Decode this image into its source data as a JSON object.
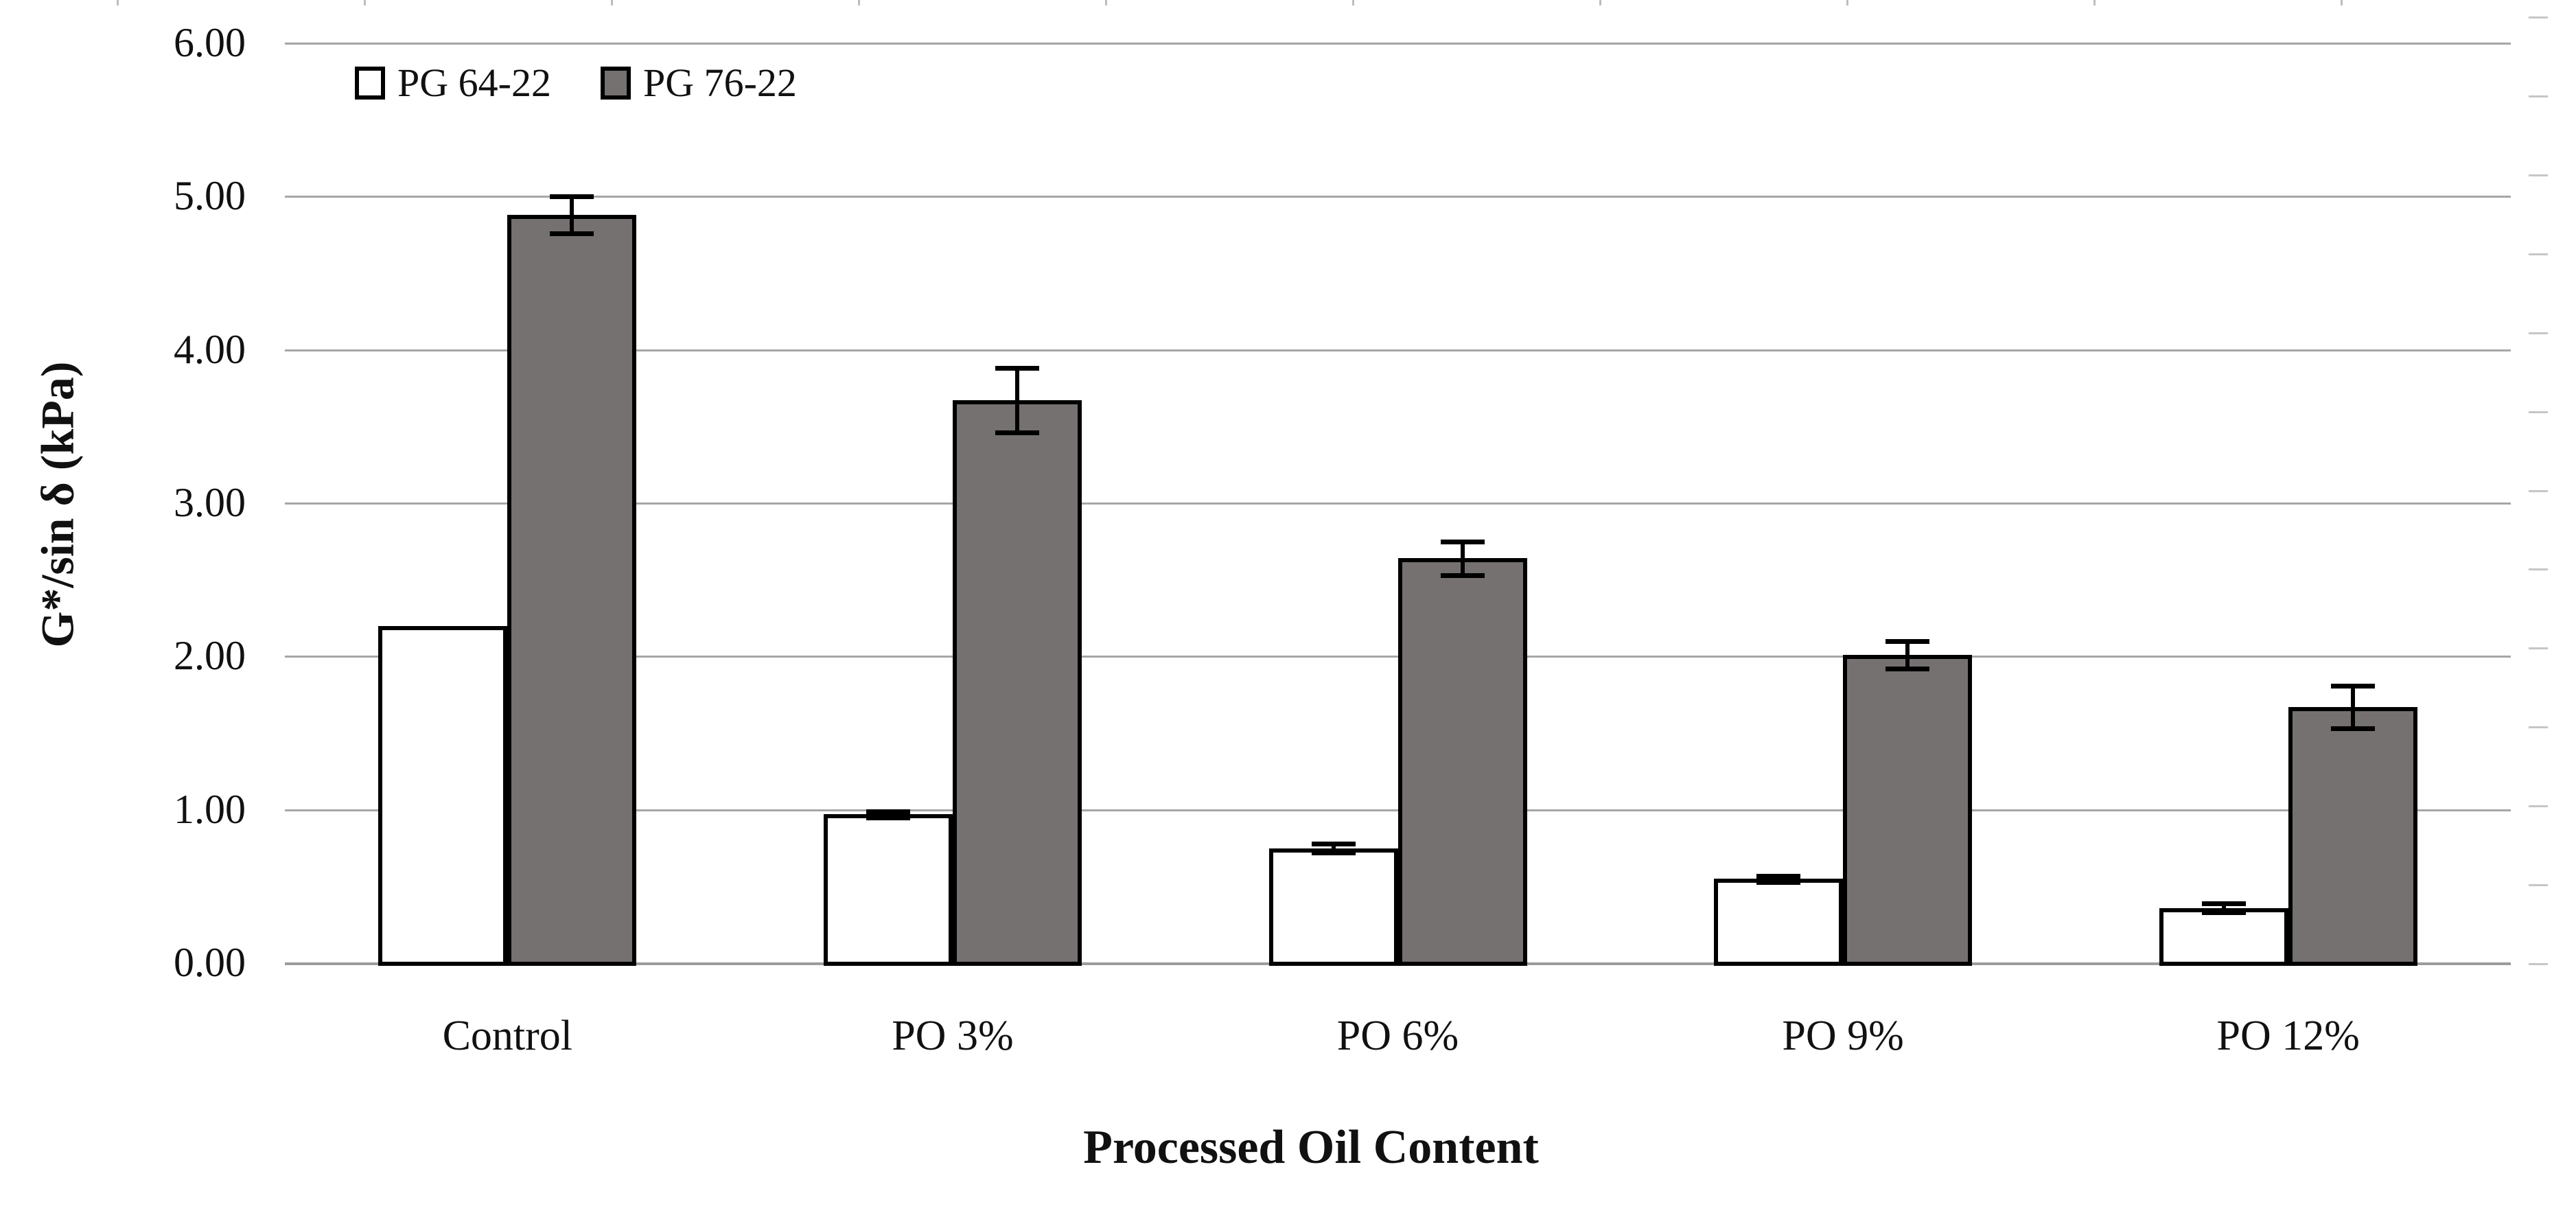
{
  "chart_data": {
    "type": "bar",
    "title": "",
    "categories": [
      "Control",
      "PO 3%",
      "PO 6%",
      "PO 9%",
      "PO 12%"
    ],
    "series": [
      {
        "name": "PG 64-22",
        "fill": "#ffffff",
        "values": [
          2.2,
          0.97,
          0.75,
          0.55,
          0.36
        ],
        "errors": [
          0,
          0.02,
          0.03,
          0.02,
          0.03
        ]
      },
      {
        "name": "PG 76-22",
        "fill": "#767171",
        "values": [
          4.88,
          3.67,
          2.64,
          2.01,
          1.67
        ],
        "errors": [
          0.12,
          0.21,
          0.11,
          0.09,
          0.14
        ]
      }
    ],
    "xlabel": "Processed Oil Content",
    "ylabel": "G*/sin δ (kPa)",
    "ylim": [
      0,
      6
    ],
    "ytick_step": 1.0,
    "ytick_labels": [
      "6.00",
      "5.00",
      "4.00",
      "3.00",
      "2.00",
      "1.00",
      "0.00"
    ],
    "grid": "horizontal-major",
    "legend_position": "top-left-inside",
    "error_bars": "plus-minus, black, capped",
    "colors": {
      "bar_border": "#000000",
      "gridline": "#a6a6a6",
      "axis_line": "#9c9c9c",
      "text": "#111111",
      "minor_tick": "#c6c6c6",
      "edge_artifact": "#bdbdbd"
    }
  }
}
